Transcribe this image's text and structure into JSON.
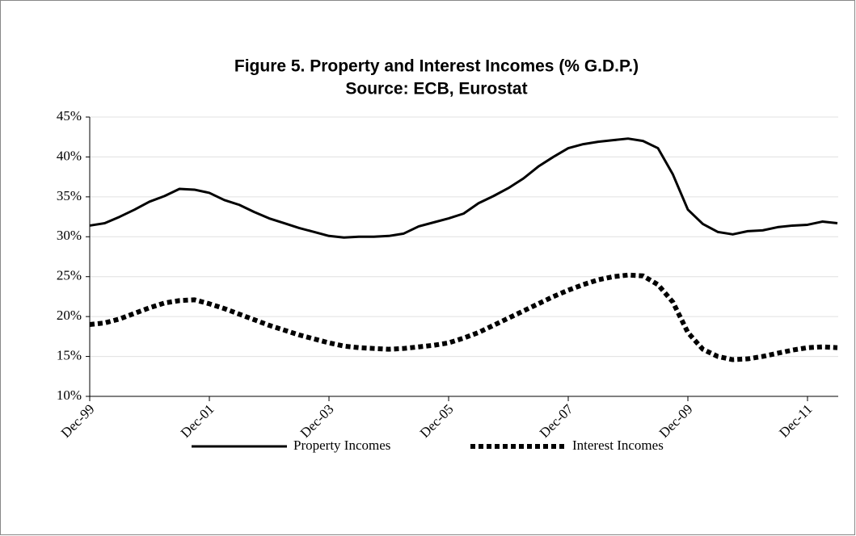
{
  "chart_data": {
    "type": "line",
    "title": "Figure 5. Property and Interest Incomes (% G.D.P.)",
    "subtitle": "Source: ECB, Eurostat",
    "categories": [
      "Dec-99",
      null,
      null,
      null,
      null,
      null,
      null,
      null,
      "Dec-01",
      null,
      null,
      null,
      null,
      null,
      null,
      null,
      "Dec-03",
      null,
      null,
      null,
      null,
      null,
      null,
      null,
      "Dec-05",
      null,
      null,
      null,
      null,
      null,
      null,
      null,
      "Dec-07",
      null,
      null,
      null,
      null,
      null,
      null,
      null,
      "Dec-09",
      null,
      null,
      null,
      null,
      null,
      null,
      null,
      "Dec-11",
      null,
      null
    ],
    "series": [
      {
        "name": "Property Incomes",
        "color": "#000000",
        "dash": "solid",
        "values": [
          31.4,
          31.7,
          32.5,
          33.4,
          34.4,
          35.1,
          36.0,
          35.9,
          35.5,
          34.6,
          34.0,
          33.1,
          32.3,
          31.7,
          31.1,
          30.6,
          30.1,
          29.9,
          30.0,
          30.0,
          30.1,
          30.4,
          31.3,
          31.8,
          32.3,
          32.9,
          34.2,
          35.1,
          36.1,
          37.3,
          38.8,
          40.0,
          41.1,
          41.6,
          41.9,
          42.1,
          42.3,
          42.0,
          41.1,
          37.8,
          33.4,
          31.6,
          30.6,
          30.3,
          30.7,
          30.8,
          31.2,
          31.4,
          31.5,
          31.9,
          31.7
        ]
      },
      {
        "name": "Interest Incomes",
        "color": "#000000",
        "dash": "dotted",
        "values": [
          19.0,
          19.2,
          19.7,
          20.4,
          21.1,
          21.7,
          22.0,
          22.1,
          21.6,
          21.0,
          20.3,
          19.6,
          18.9,
          18.3,
          17.7,
          17.2,
          16.7,
          16.3,
          16.1,
          16.0,
          15.9,
          16.0,
          16.2,
          16.4,
          16.7,
          17.3,
          18.0,
          18.9,
          19.8,
          20.7,
          21.6,
          22.5,
          23.3,
          24.0,
          24.6,
          25.0,
          25.2,
          25.1,
          24.0,
          21.8,
          18.0,
          15.9,
          15.0,
          14.6,
          14.7,
          15.0,
          15.4,
          15.8,
          16.1,
          16.2,
          16.1
        ]
      }
    ],
    "ylim": [
      10,
      45
    ],
    "yticks": [
      {
        "value": 10,
        "label": "10%"
      },
      {
        "value": 15,
        "label": "15%"
      },
      {
        "value": 20,
        "label": "20%"
      },
      {
        "value": 25,
        "label": "25%"
      },
      {
        "value": 30,
        "label": "30%"
      },
      {
        "value": 35,
        "label": "35%"
      },
      {
        "value": 40,
        "label": "40%"
      },
      {
        "value": 45,
        "label": "45%"
      }
    ],
    "grid": true,
    "legend": "bottom"
  }
}
